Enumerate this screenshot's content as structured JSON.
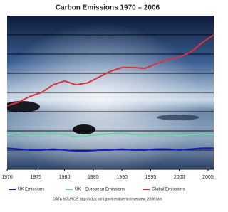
{
  "chart_data": {
    "type": "line",
    "title": "Carbon Emissions 1970 – 2006",
    "source": "DATA SOURCE: http://cdiac.ornl.gov/trends/emis/overview_2006.htm",
    "x": [
      1970,
      1972,
      1974,
      1976,
      1978,
      1980,
      1982,
      1984,
      1986,
      1988,
      1990,
      1992,
      1994,
      1996,
      1998,
      2000,
      2002,
      2004,
      2006
    ],
    "xlim": [
      1970,
      2006
    ],
    "xticks": [
      1970,
      1975,
      1980,
      1985,
      1990,
      1995,
      2000,
      2005
    ],
    "ylim": [
      0,
      8
    ],
    "yticks": [
      1,
      2,
      3,
      4,
      5,
      6,
      7
    ],
    "grid": true,
    "series": [
      {
        "name": "UK Emissions",
        "color": "#1a1ad0",
        "values": [
          1.1,
          1.05,
          1.0,
          1.0,
          1.05,
          1.0,
          0.95,
          0.95,
          1.0,
          1.0,
          1.05,
          1.0,
          1.0,
          1.05,
          1.05,
          1.0,
          1.05,
          1.1,
          1.1
        ]
      },
      {
        "name": "UK + European Emissions",
        "color": "#6fd6a8",
        "values": [
          1.8,
          1.9,
          1.75,
          1.85,
          1.9,
          1.8,
          1.7,
          1.75,
          1.8,
          1.85,
          1.9,
          1.8,
          1.75,
          1.8,
          1.85,
          1.75,
          1.8,
          1.85,
          1.8
        ]
      },
      {
        "name": "Global Emissions",
        "color": "#e0303a",
        "values": [
          3.3,
          3.5,
          3.8,
          4.0,
          4.4,
          4.6,
          4.4,
          4.5,
          4.8,
          5.1,
          5.3,
          5.3,
          5.25,
          5.5,
          5.7,
          5.85,
          6.1,
          6.6,
          7.0
        ]
      }
    ]
  }
}
